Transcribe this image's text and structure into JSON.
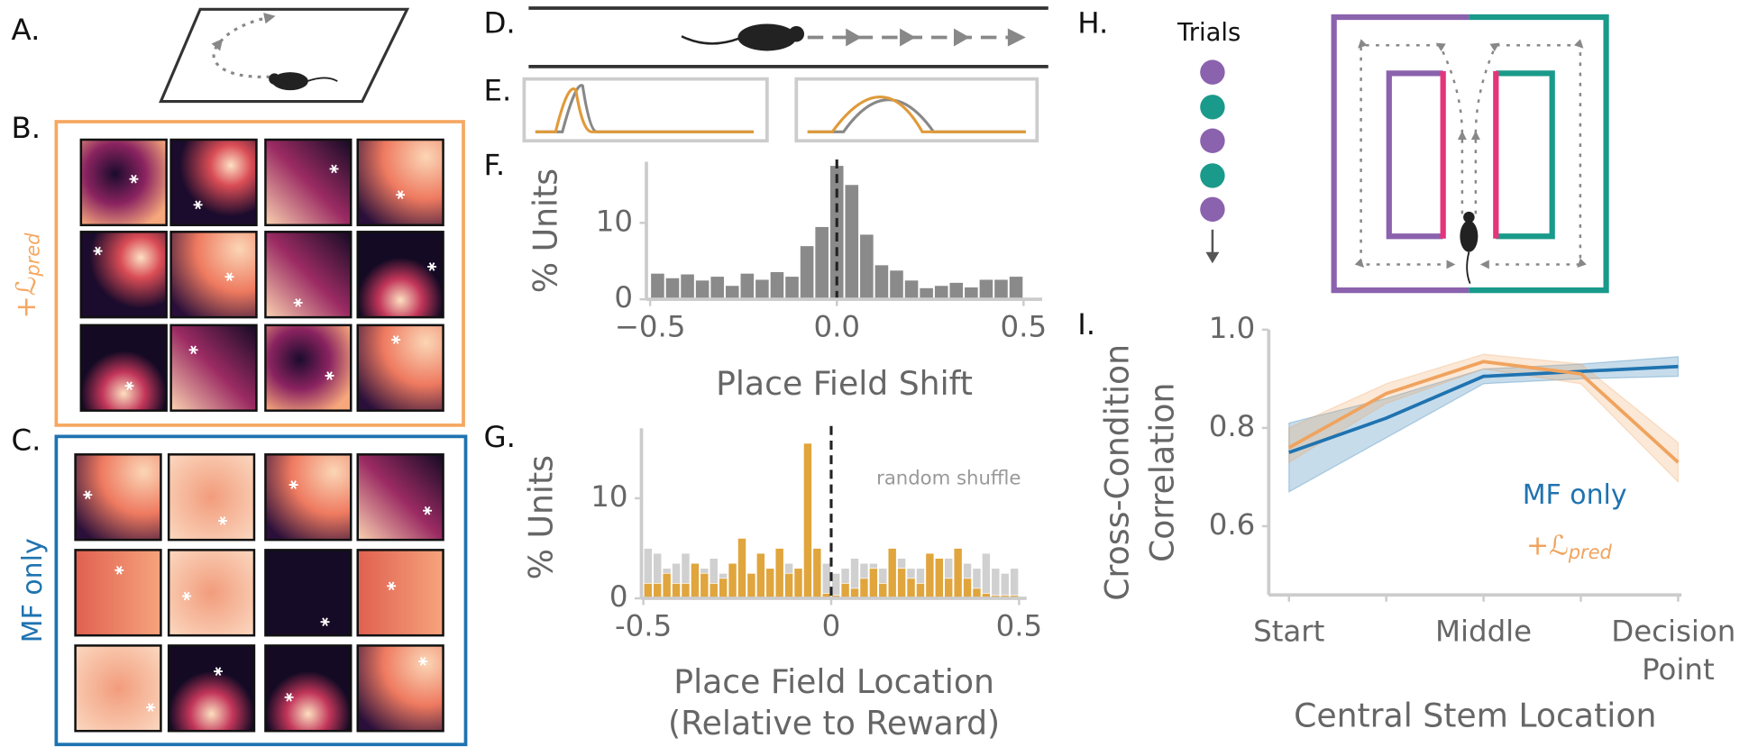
{
  "panels": {
    "a": "A.",
    "b": "B.",
    "c": "C.",
    "d": "D.",
    "e": "E.",
    "f": "F.",
    "g": "G.",
    "h": "H.",
    "i": "I."
  },
  "text": {
    "b_side": "+ℒpred",
    "c_side": "MF only",
    "trials": "Trials"
  },
  "chart_data": [
    {
      "type": "histogram",
      "ylabel": "% Units",
      "xlabel": "Place Field Shift",
      "color": "#8a8a8a",
      "bins": [
        -0.5,
        -0.46,
        -0.42,
        -0.38,
        -0.34,
        -0.3,
        -0.26,
        -0.22,
        -0.18,
        -0.14,
        -0.1,
        -0.06,
        -0.02,
        0.02,
        0.06,
        0.1,
        0.14,
        0.18,
        0.22,
        0.26,
        0.3,
        0.34,
        0.38,
        0.42,
        0.46,
        0.5
      ],
      "series": [
        {
          "color": "#8a8a8a",
          "values": [
            3.4,
            2.8,
            3.3,
            2.5,
            3.0,
            1.8,
            3.4,
            2.6,
            3.6,
            3.0,
            7.0,
            9.5,
            17.5,
            15.0,
            8.5,
            4.5,
            3.8,
            2.5,
            1.5,
            1.8,
            2.2,
            1.6,
            2.6,
            2.6,
            3.0
          ]
        }
      ],
      "vline": 0,
      "xlim": [
        -0.51,
        0.55
      ],
      "ylim": [
        0,
        18
      ],
      "xticks": [
        {
          "value": -0.5,
          "label": "−0.5"
        },
        {
          "value": 0,
          "label": "0.0"
        },
        {
          "value": 0.5,
          "label": "0.5"
        }
      ],
      "yticks": [
        0,
        10
      ]
    },
    {
      "type": "histogram",
      "ylabel": "% Units",
      "xlabel": [
        "Place Field Location",
        "(Relative to Reward)"
      ],
      "bins": [
        -0.5,
        -0.475,
        -0.45,
        -0.425,
        -0.4,
        -0.375,
        -0.35,
        -0.325,
        -0.3,
        -0.275,
        -0.25,
        -0.225,
        -0.2,
        -0.175,
        -0.15,
        -0.125,
        -0.1,
        -0.075,
        -0.05,
        -0.025,
        0,
        0.025,
        0.05,
        0.075,
        0.1,
        0.125,
        0.15,
        0.175,
        0.2,
        0.225,
        0.25,
        0.275,
        0.3,
        0.325,
        0.35,
        0.375,
        0.4,
        0.425,
        0.45,
        0.475,
        0.5
      ],
      "series": [
        {
          "name": "random shuffle",
          "color": "#d0d0d0",
          "values": [
            5.0,
            4.5,
            3.0,
            3.5,
            4.5,
            3.0,
            3.0,
            4.0,
            2.5,
            3.0,
            3.5,
            2.5,
            3.0,
            3.0,
            3.5,
            3.5,
            2.5,
            3.0,
            3.5,
            3.5,
            2.5,
            3.0,
            4.0,
            3.5,
            3.5,
            3.0,
            3.0,
            4.0,
            3.0,
            3.0,
            3.5,
            3.0,
            4.0,
            3.0,
            3.5,
            3.0,
            4.5,
            3.0,
            2.5,
            3.0
          ]
        },
        {
          "color": "#e0a53c",
          "values": [
            1.5,
            1.5,
            2.5,
            1.5,
            1.5,
            3.5,
            2.5,
            1.5,
            2.0,
            3.5,
            6.0,
            2.5,
            4.5,
            3.0,
            5.0,
            2.5,
            3.0,
            15.5,
            5.0,
            0.5,
            0.3,
            1.5,
            1.0,
            2.0,
            3.0,
            1.5,
            5.0,
            3.0,
            2.0,
            1.5,
            4.5,
            4.0,
            2.0,
            5.0,
            2.0,
            1.0,
            0.5,
            0.3,
            0.3,
            0.3
          ]
        }
      ],
      "vline": 0,
      "xlim": [
        -0.505,
        0.52
      ],
      "ylim": [
        0,
        17
      ],
      "xticks": [
        {
          "value": -0.5,
          "label": "-0.5"
        },
        0,
        0.5
      ],
      "yticks": [
        0,
        10
      ]
    },
    {
      "type": "line",
      "ylabel": [
        "Cross-Condition",
        "Correlation"
      ],
      "xlabel": "Central Stem Location",
      "categories": [
        "Start",
        null,
        "Middle",
        null,
        "Decision Point"
      ],
      "series": [
        {
          "name": "MF only",
          "color": "#1f73b0",
          "values": [
            0.75,
            0.82,
            0.905,
            0.915,
            0.925
          ],
          "lower": [
            0.67,
            0.78,
            0.89,
            0.9,
            0.905
          ],
          "upper": [
            0.81,
            0.86,
            0.92,
            0.93,
            0.945
          ]
        },
        {
          "name": "+ℒpred",
          "color": "#f0a35e",
          "values": [
            0.76,
            0.87,
            0.935,
            0.91,
            0.73
          ],
          "lower": [
            0.73,
            0.85,
            0.92,
            0.89,
            0.69
          ],
          "upper": [
            0.8,
            0.89,
            0.95,
            0.93,
            0.77
          ]
        }
      ],
      "ylim": [
        0.46,
        1.0
      ],
      "yticks": [
        0.6,
        0.8,
        {
          "value": 1.0,
          "label": "1.0"
        }
      ]
    }
  ]
}
